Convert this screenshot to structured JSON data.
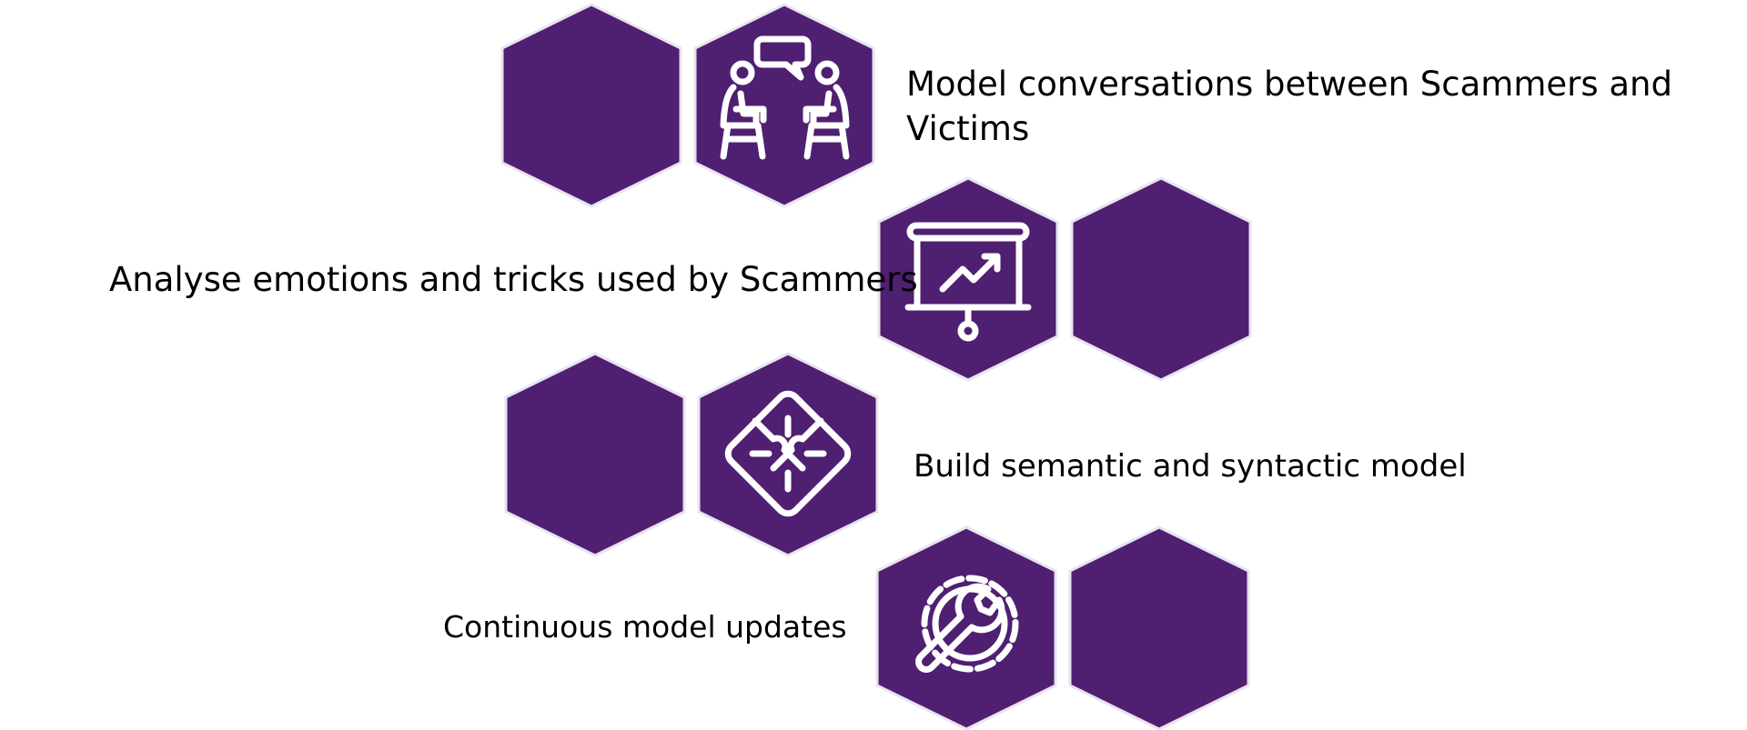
{
  "colors": {
    "hex_fill": "#4f1f72",
    "hex_edge": "#e9e3ef",
    "icon_stroke": "#ffffff",
    "text": "#000000"
  },
  "steps": [
    {
      "text": "Model conversations between Scammers and Victims",
      "icon": "conversation-people-icon"
    },
    {
      "text": "Analyse emotions and tricks used by Scammers",
      "icon": "presentation-chart-icon"
    },
    {
      "text": "Build semantic and syntactic model",
      "icon": "puzzle-pieces-icon"
    },
    {
      "text": "Continuous model updates",
      "icon": "gear-wrench-icon"
    }
  ]
}
